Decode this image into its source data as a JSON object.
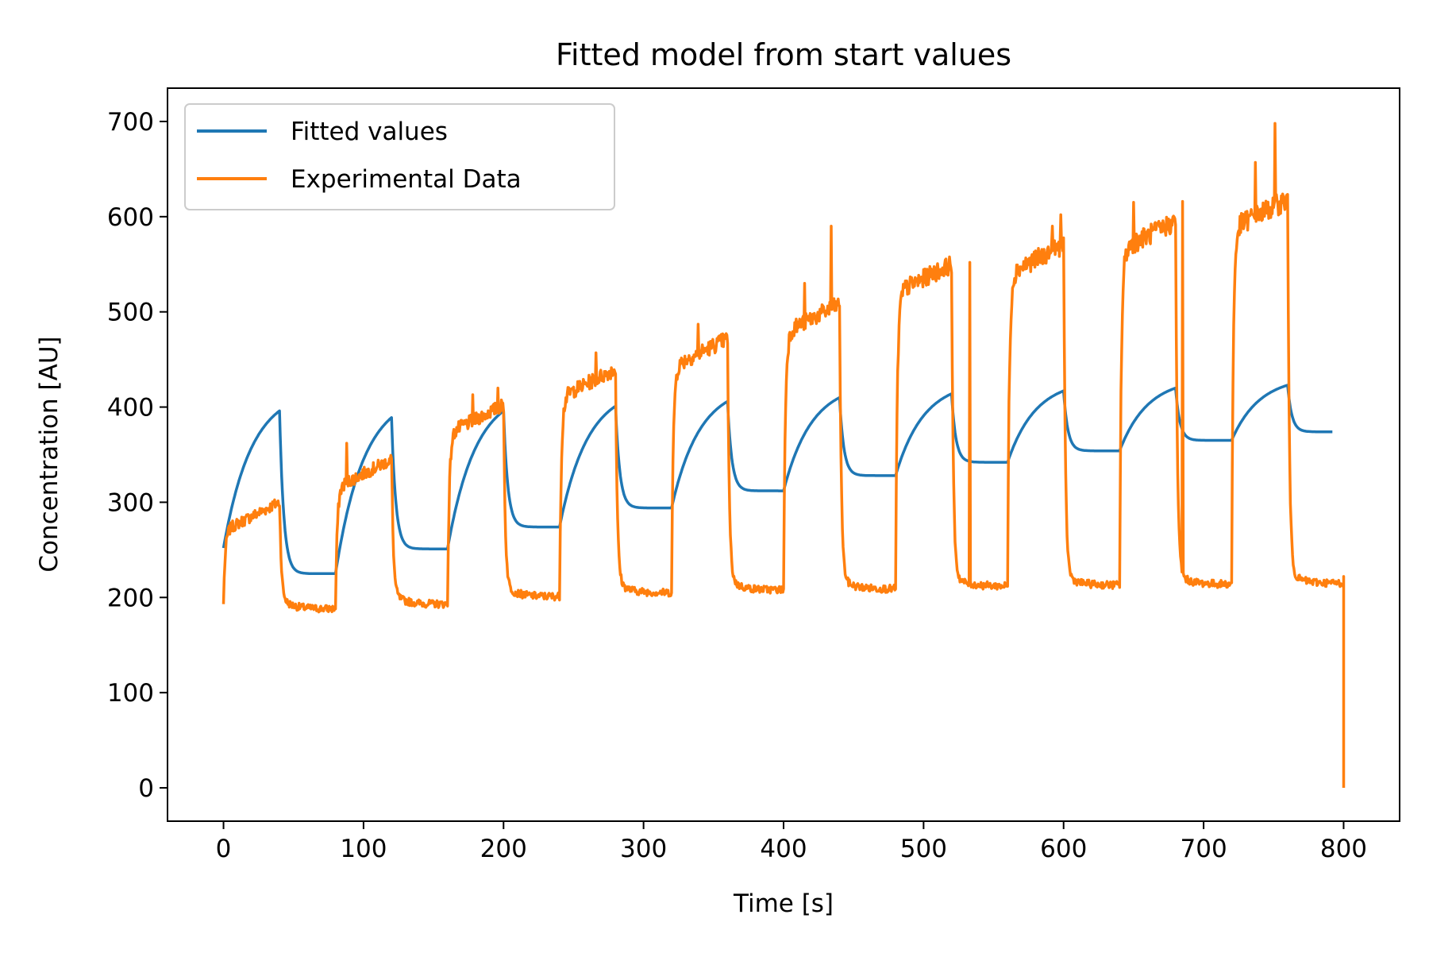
{
  "chart_data": {
    "type": "line",
    "title": "Fitted model from start values",
    "xlabel": "Time [s]",
    "ylabel": "Concentration [AU]",
    "xlim": [
      -40,
      840
    ],
    "ylim": [
      -35,
      735
    ],
    "xticks": [
      0,
      100,
      200,
      300,
      400,
      500,
      600,
      700,
      800
    ],
    "yticks": [
      0,
      100,
      200,
      300,
      400,
      500,
      600,
      700
    ],
    "legend_position": "upper-left",
    "grid": false,
    "period_s": 40,
    "cycles": 10,
    "series": [
      {
        "name": "Fitted values",
        "color": "#1f77b4",
        "baselines": [
          252,
          225,
          251,
          274,
          294,
          312,
          328,
          342,
          354,
          365,
          374
        ],
        "peaks": [
          396,
          389,
          396,
          401,
          406,
          410,
          414,
          417,
          420,
          423
        ]
      },
      {
        "name": "Experimental Data",
        "color": "#ff7f0e",
        "start": 193,
        "end": 0,
        "lows": [
          188,
          193,
          201,
          205,
          208,
          209,
          212,
          213,
          214,
          215
        ],
        "highs": [
          300,
          345,
          402,
          440,
          472,
          508,
          550,
          570,
          595,
          618
        ],
        "spikes": [
          {
            "x": 88,
            "y": 362
          },
          {
            "x": 178,
            "y": 413
          },
          {
            "x": 196,
            "y": 420
          },
          {
            "x": 266,
            "y": 457
          },
          {
            "x": 339,
            "y": 487
          },
          {
            "x": 415,
            "y": 530
          },
          {
            "x": 434,
            "y": 590
          },
          {
            "x": 533,
            "y": 552
          },
          {
            "x": 592,
            "y": 590
          },
          {
            "x": 598,
            "y": 602
          },
          {
            "x": 650,
            "y": 615
          },
          {
            "x": 685,
            "y": 616
          },
          {
            "x": 737,
            "y": 657
          },
          {
            "x": 751,
            "y": 698
          }
        ]
      }
    ]
  }
}
